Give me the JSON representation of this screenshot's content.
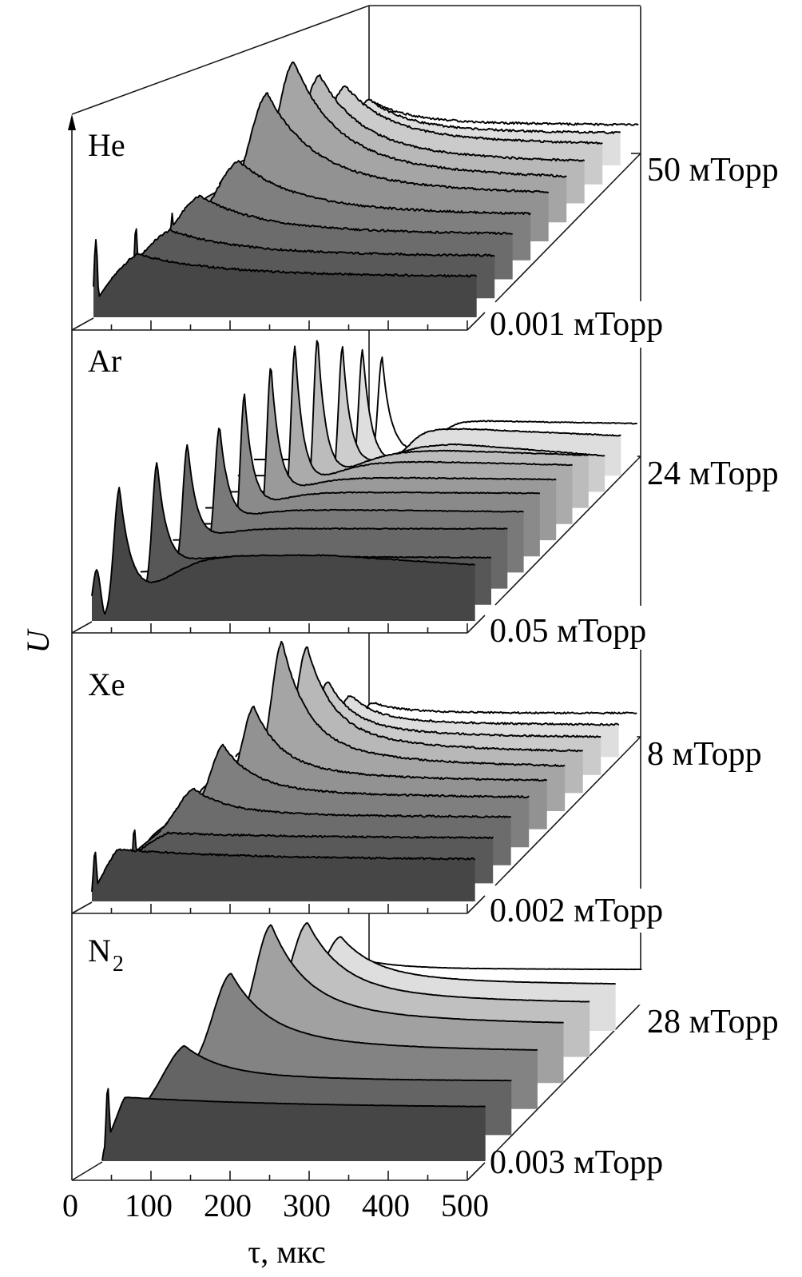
{
  "chart_data": {
    "type": "area",
    "subtype": "waterfall-3d",
    "xlabel": "τ, мкс",
    "ylabel": "U",
    "xlim": [
      0,
      500
    ],
    "x_ticks": [
      0,
      100,
      200,
      300,
      400,
      500
    ],
    "x_tick_labels": [
      "0",
      "100",
      "200",
      "300",
      "400",
      "500"
    ],
    "grid": false,
    "y_units": "arbitrary",
    "panels": [
      {
        "gas": "He",
        "gas_sub": "",
        "pressure_low": "0.001 мТорр",
        "pressure_high": "50 мТорр",
        "model": "pulse",
        "noise": 1.3,
        "curves": [
          {
            "peak_us": 56,
            "peak_U": 79,
            "tail_U": 49,
            "rise_us": 35,
            "decay_us": 90,
            "spike_us": 3,
            "spike_U": 97
          },
          {
            "peak_us": 74,
            "peak_U": 85,
            "tail_U": 51,
            "rise_us": 35,
            "decay_us": 80,
            "spike_us": 31,
            "spike_U": 88
          },
          {
            "peak_us": 89,
            "peak_U": 104,
            "tail_U": 54,
            "rise_us": 30,
            "decay_us": 70,
            "spike_us": 54,
            "spike_U": 82
          },
          {
            "peak_us": 116,
            "peak_U": 124,
            "tail_U": 54,
            "rise_us": 28,
            "decay_us": 65
          },
          {
            "peak_us": 129,
            "peak_U": 185,
            "tail_U": 55,
            "rise_us": 22,
            "decay_us": 55
          },
          {
            "peak_us": 140,
            "peak_U": 201,
            "tail_U": 51,
            "rise_us": 20,
            "decay_us": 50
          },
          {
            "peak_us": 150,
            "peak_U": 160,
            "tail_U": 48,
            "rise_us": 20,
            "decay_us": 50
          },
          {
            "peak_us": 160,
            "peak_U": 123,
            "tail_U": 48,
            "rise_us": 20,
            "decay_us": 50
          },
          {
            "peak_us": 168,
            "peak_U": 82,
            "tail_U": 39,
            "rise_us": 20,
            "decay_us": 45
          },
          {
            "peak_us": 150,
            "peak_U": 55,
            "tail_U": 26,
            "rise_us": 25,
            "decay_us": 45
          }
        ]
      },
      {
        "gas": "Ar",
        "gas_sub": "",
        "pressure_low": "0.05 мТорр",
        "pressure_high": "24 мТорр",
        "model": "peak-plateau",
        "noise": 0.6,
        "curves": [
          {
            "peak_us": 35,
            "peak_U": 167,
            "rise_us": 7,
            "decay_us": 14,
            "plateau_U": 82,
            "plateau_end_U": 70,
            "plateau_rise_us": 90,
            "spike_us": 6,
            "spike_U": 64
          },
          {
            "peak_us": 62,
            "peak_U": 179,
            "rise_us": 6,
            "decay_us": 12,
            "plateau_U": 60,
            "plateau_end_U": 59,
            "plateau_rise_us": 77
          },
          {
            "peak_us": 80,
            "peak_U": 181,
            "rise_us": 6,
            "decay_us": 12,
            "plateau_U": 75,
            "plateau_end_U": 75,
            "plateau_rise_us": 94
          },
          {
            "peak_us": 100,
            "peak_U": 183,
            "rise_us": 6,
            "decay_us": 12,
            "plateau_U": 78,
            "plateau_end_U": 76,
            "plateau_rise_us": 111
          },
          {
            "peak_us": 111,
            "peak_U": 203,
            "rise_us": 5,
            "decay_us": 11,
            "plateau_U": 80,
            "plateau_end_U": 79,
            "plateau_rise_us": 128
          },
          {
            "peak_us": 124,
            "peak_U": 219,
            "rise_us": 5,
            "decay_us": 11,
            "plateau_U": 78,
            "plateau_end_U": 76,
            "plateau_rise_us": 145
          },
          {
            "peak_us": 134,
            "peak_U": 224,
            "rise_us": 5,
            "decay_us": 10,
            "plateau_U": 78,
            "plateau_end_U": 74,
            "plateau_rise_us": 162
          },
          {
            "peak_us": 142,
            "peak_U": 214,
            "rise_us": 5,
            "decay_us": 10,
            "plateau_U": 72,
            "plateau_end_U": 66,
            "plateau_rise_us": 179
          },
          {
            "peak_us": 153,
            "peak_U": 182,
            "rise_us": 5,
            "decay_us": 10,
            "plateau_U": 60,
            "plateau_end_U": 45,
            "plateau_rise_us": 196
          },
          {
            "peak_us": 158,
            "peak_U": 158,
            "rise_us": 5,
            "decay_us": 10,
            "plateau_U": 58,
            "plateau_end_U": 50,
            "plateau_rise_us": 213
          },
          {
            "peak_us": 162,
            "peak_U": 128,
            "rise_us": 5,
            "decay_us": 10,
            "plateau_U": 48,
            "plateau_end_U": 45,
            "plateau_rise_us": 230
          }
        ]
      },
      {
        "gas": "Xe",
        "gas_sub": "",
        "pressure_low": "0.002 мТорр",
        "pressure_high": "8 мТорр",
        "model": "pulse",
        "noise": 1.1,
        "curves": [
          {
            "peak_us": 33,
            "peak_U": 65,
            "tail_U": 51,
            "rise_us": 12,
            "decay_us": 150,
            "spike_us": 4,
            "spike_U": 63
          },
          {
            "peak_us": 73,
            "peak_U": 63,
            "tail_U": 56,
            "rise_us": 30,
            "decay_us": 150,
            "spike_us": 31,
            "spike_U": 68
          },
          {
            "peak_us": 83,
            "peak_U": 96,
            "tail_U": 60,
            "rise_us": 20,
            "decay_us": 40
          },
          {
            "peak_us": 98,
            "peak_U": 128,
            "tail_U": 62,
            "rise_us": 15,
            "decay_us": 35
          },
          {
            "peak_us": 114,
            "peak_U": 153,
            "tail_U": 60,
            "rise_us": 14,
            "decay_us": 32
          },
          {
            "peak_us": 127,
            "peak_U": 212,
            "tail_U": 55,
            "rise_us": 13,
            "decay_us": 30
          },
          {
            "peak_us": 136,
            "peak_U": 183,
            "tail_U": 51,
            "rise_us": 13,
            "decay_us": 30
          },
          {
            "peak_us": 140,
            "peak_U": 117,
            "tail_U": 47,
            "rise_us": 13,
            "decay_us": 30
          },
          {
            "peak_us": 146,
            "peak_U": 77,
            "tail_U": 40,
            "rise_us": 13,
            "decay_us": 30
          },
          {
            "peak_us": 153,
            "peak_U": 45,
            "tail_U": 32,
            "rise_us": 13,
            "decay_us": 30
          }
        ]
      },
      {
        "gas": "N",
        "gas_sub": "2",
        "pressure_low": "0.003 мТорр",
        "pressure_high": "28 мТорр",
        "model": "pulse",
        "noise": 0.2,
        "curves": [
          {
            "peak_us": 29,
            "peak_U": 80,
            "tail_U": 65,
            "rise_us": 8,
            "decay_us": 200,
            "spike_us": 7,
            "spike_U": 93
          },
          {
            "peak_us": 71,
            "peak_U": 112,
            "tail_U": 67,
            "rise_us": 25,
            "decay_us": 45
          },
          {
            "peak_us": 97,
            "peak_U": 170,
            "tail_U": 71,
            "rise_us": 22,
            "decay_us": 45
          },
          {
            "peak_us": 115,
            "peak_U": 198,
            "tail_U": 72,
            "rise_us": 20,
            "decay_us": 42
          },
          {
            "peak_us": 128,
            "peak_U": 168,
            "tail_U": 66,
            "rise_us": 20,
            "decay_us": 42
          },
          {
            "peak_us": 137,
            "peak_U": 118,
            "tail_U": 57,
            "rise_us": 20,
            "decay_us": 42
          },
          {
            "peak_us": 138,
            "peak_U": 55,
            "tail_U": 44,
            "rise_us": 20,
            "decay_us": 42
          }
        ]
      }
    ],
    "colors": {
      "front_fill": "#464646",
      "back_fill": "#dedede",
      "top_fill": "#ffffff",
      "line": "#000000"
    }
  }
}
